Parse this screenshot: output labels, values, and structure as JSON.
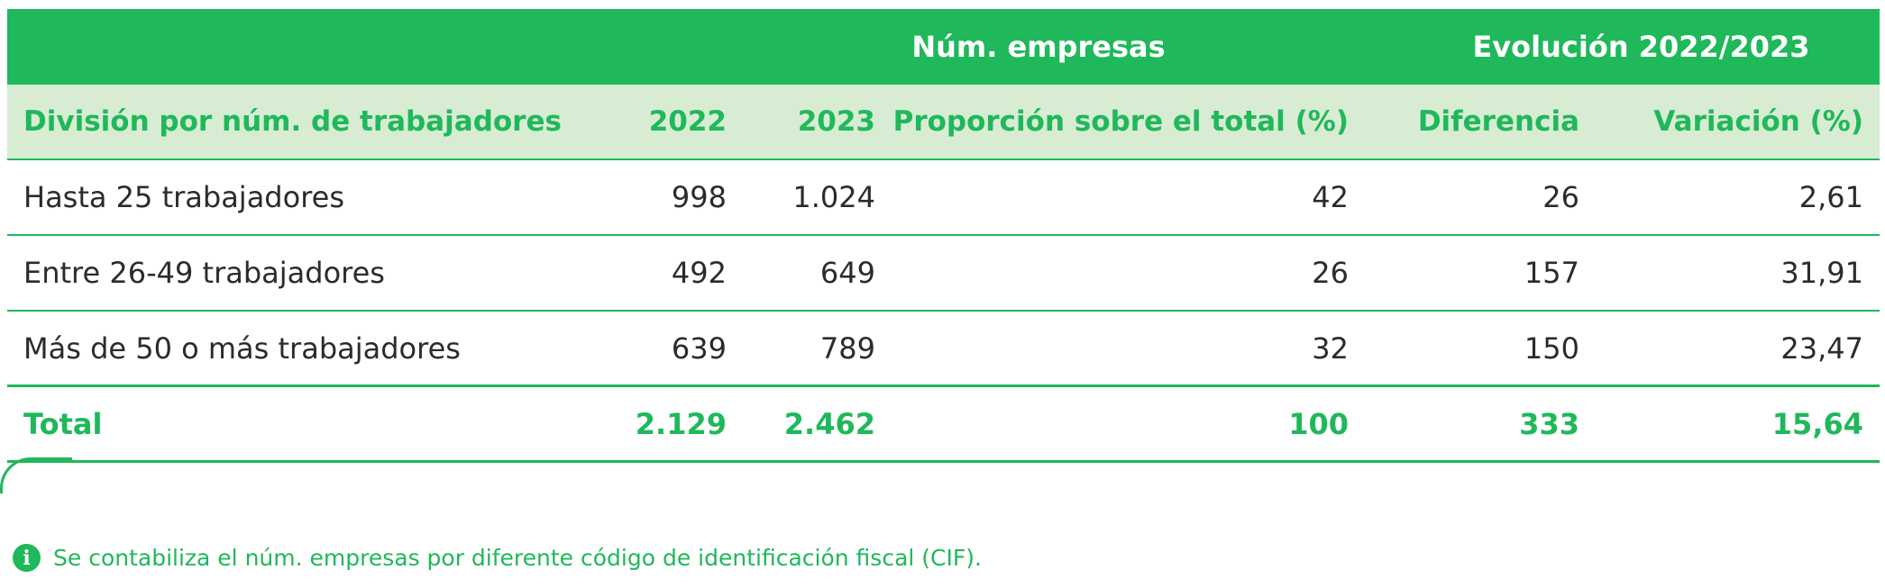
{
  "table": {
    "group_headers": {
      "empresas": "Núm. empresas",
      "evolucion": "Evolución 2022/2023"
    },
    "columns": {
      "division": "División por núm. de trabajadores",
      "y2022": "2022",
      "y2023": "2023",
      "proporcion": "Proporción sobre el total (%)",
      "diferencia": "Diferencia",
      "variacion": "Variación (%)"
    },
    "rows": [
      {
        "division": "Hasta 25 trabajadores",
        "y2022": "998",
        "y2023": "1.024",
        "proporcion": "42",
        "diferencia": "26",
        "variacion": "2,61"
      },
      {
        "division": "Entre 26-49 trabajadores",
        "y2022": "492",
        "y2023": "649",
        "proporcion": "26",
        "diferencia": "157",
        "variacion": "31,91"
      },
      {
        "division": "Más de 50 o más trabajadores",
        "y2022": "639",
        "y2023": "789",
        "proporcion": "32",
        "diferencia": "150",
        "variacion": "23,47"
      }
    ],
    "total": {
      "division": "Total",
      "y2022": "2.129",
      "y2023": "2.462",
      "proporcion": "100",
      "diferencia": "333",
      "variacion": "15,64"
    }
  },
  "note": {
    "icon": "info-icon",
    "icon_glyph": "i",
    "text": "Se contabiliza el núm. empresas por diferente código de identificación fiscal (CIF)."
  },
  "colors": {
    "accent_green": "#1fb85a",
    "header_light_green": "#d8ecd4",
    "body_text": "#2b2b2b"
  }
}
